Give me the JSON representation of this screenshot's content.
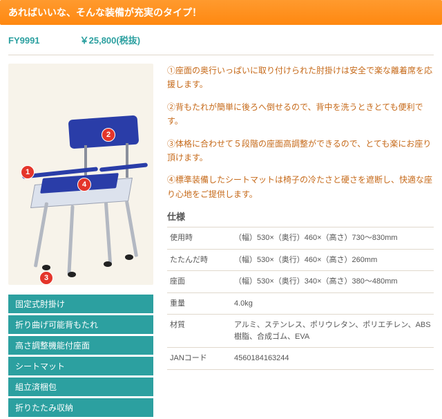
{
  "banner": "あればいいな、そんな装備が充実のタイプ！",
  "product_code": "FY9991",
  "price": "￥25,800(税抜)",
  "callouts": [
    "1",
    "2",
    "3",
    "4"
  ],
  "features": [
    "固定式肘掛け",
    "折り曲げ可能背もたれ",
    "高さ調整機能付座面",
    "シートマット",
    "組立済梱包",
    "折りたたみ収納"
  ],
  "desc": [
    "①座面の奥行いっぱいに取り付けられた肘掛けは安全で楽な離着席を応援します。",
    "②背もたれが簡単に後ろへ倒せるので、背中を洗うときとても便利です。",
    "③体格に合わせて５段階の座面高調整ができるので、とても楽にお座り頂けます。",
    "④標準装備したシートマットは椅子の冷たさと硬さを遮断し、快適な座り心地をご提供します。"
  ],
  "spec_heading": "仕様",
  "spec": [
    {
      "k": "使用時",
      "v": "（幅）530×（奥行）460×（高さ）730～830mm"
    },
    {
      "k": "たたんだ時",
      "v": "（幅）530×（奥行）460×（高さ）260mm"
    },
    {
      "k": "座面",
      "v": "（幅）530×（奥行）340×（高さ）380～480mm"
    },
    {
      "k": "重量",
      "v": "4.0kg"
    },
    {
      "k": "材質",
      "v": "アルミ、ステンレス、ポリウレタン、ポリエチレン、ABS樹脂、合成ゴム、EVA"
    },
    {
      "k": "JANコード",
      "v": "4560184163244"
    }
  ],
  "colors": {
    "banner_bg": "#ff8810",
    "accent": "#2ca0a0",
    "desc_text": "#c66a1a",
    "chair_blue": "#2a3da8",
    "callout": "#e4352b"
  }
}
